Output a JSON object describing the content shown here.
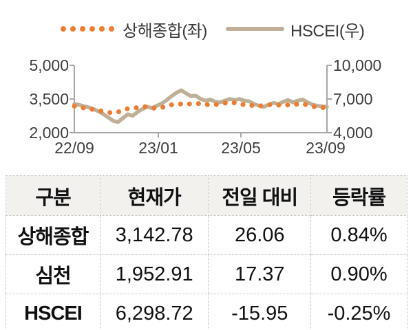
{
  "colors": {
    "shanghai_orange": "#ED7D31",
    "hscei_tan": "#BFAF97",
    "axis_gray": "#A6A6A6",
    "header_bg": "#F2F1EE"
  },
  "chart_data": {
    "type": "line",
    "title": "",
    "legend_position": "top",
    "grid": false,
    "x_axis": {
      "ticks": [
        "22/09",
        "23/01",
        "23/05",
        "23/09"
      ]
    },
    "left_axis": {
      "min": 2000,
      "max": 5000,
      "ticks": [
        "5,000",
        "3,500",
        "2,000"
      ]
    },
    "right_axis": {
      "min": 4000,
      "max": 10000,
      "ticks": [
        "10,000",
        "7,000",
        "4,000"
      ]
    },
    "series": [
      {
        "name": "상해종합(좌)",
        "axis": "left",
        "style": "dotted",
        "color": "#ED7D31",
        "values": [
          3180,
          3150,
          3100,
          3070,
          3030,
          2990,
          2950,
          2900,
          2890,
          2920,
          3000,
          3070,
          3090,
          3120,
          3170,
          3150,
          3100,
          3090,
          3120,
          3180,
          3240,
          3270,
          3280,
          3260,
          3290,
          3280,
          3310,
          3260,
          3230,
          3250,
          3280,
          3320,
          3350,
          3330,
          3290,
          3240,
          3200,
          3220,
          3190,
          3210,
          3240,
          3260,
          3230,
          3200,
          3240,
          3280,
          3260,
          3290,
          3230,
          3180,
          3130,
          3110,
          3140
        ]
      },
      {
        "name": "HSCEI(우)",
        "axis": "right",
        "style": "solid",
        "color": "#BFAF97",
        "values": [
          6550,
          6480,
          6350,
          6250,
          6100,
          5900,
          5650,
          5350,
          5050,
          4950,
          5300,
          5650,
          5500,
          5850,
          6100,
          6300,
          6200,
          6400,
          6600,
          6900,
          7250,
          7550,
          7780,
          7500,
          7250,
          7300,
          7000,
          6850,
          6950,
          6750,
          6700,
          6850,
          7000,
          6900,
          7000,
          6850,
          6800,
          6550,
          6400,
          6300,
          6500,
          6650,
          6550,
          6750,
          6900,
          6700,
          6850,
          6950,
          6700,
          6500,
          6400,
          6350,
          6300
        ]
      }
    ]
  },
  "table": {
    "headers": [
      "구분",
      "현재가",
      "전일 대비",
      "등락률"
    ],
    "rows": [
      {
        "name": "상해종합",
        "price": "3,142.78",
        "change": "26.06",
        "rate": "0.84%"
      },
      {
        "name": "심천",
        "price": "1,952.91",
        "change": "17.37",
        "rate": "0.90%"
      },
      {
        "name": "HSCEI",
        "price": "6,298.72",
        "change": "-15.95",
        "rate": "-0.25%"
      }
    ]
  }
}
